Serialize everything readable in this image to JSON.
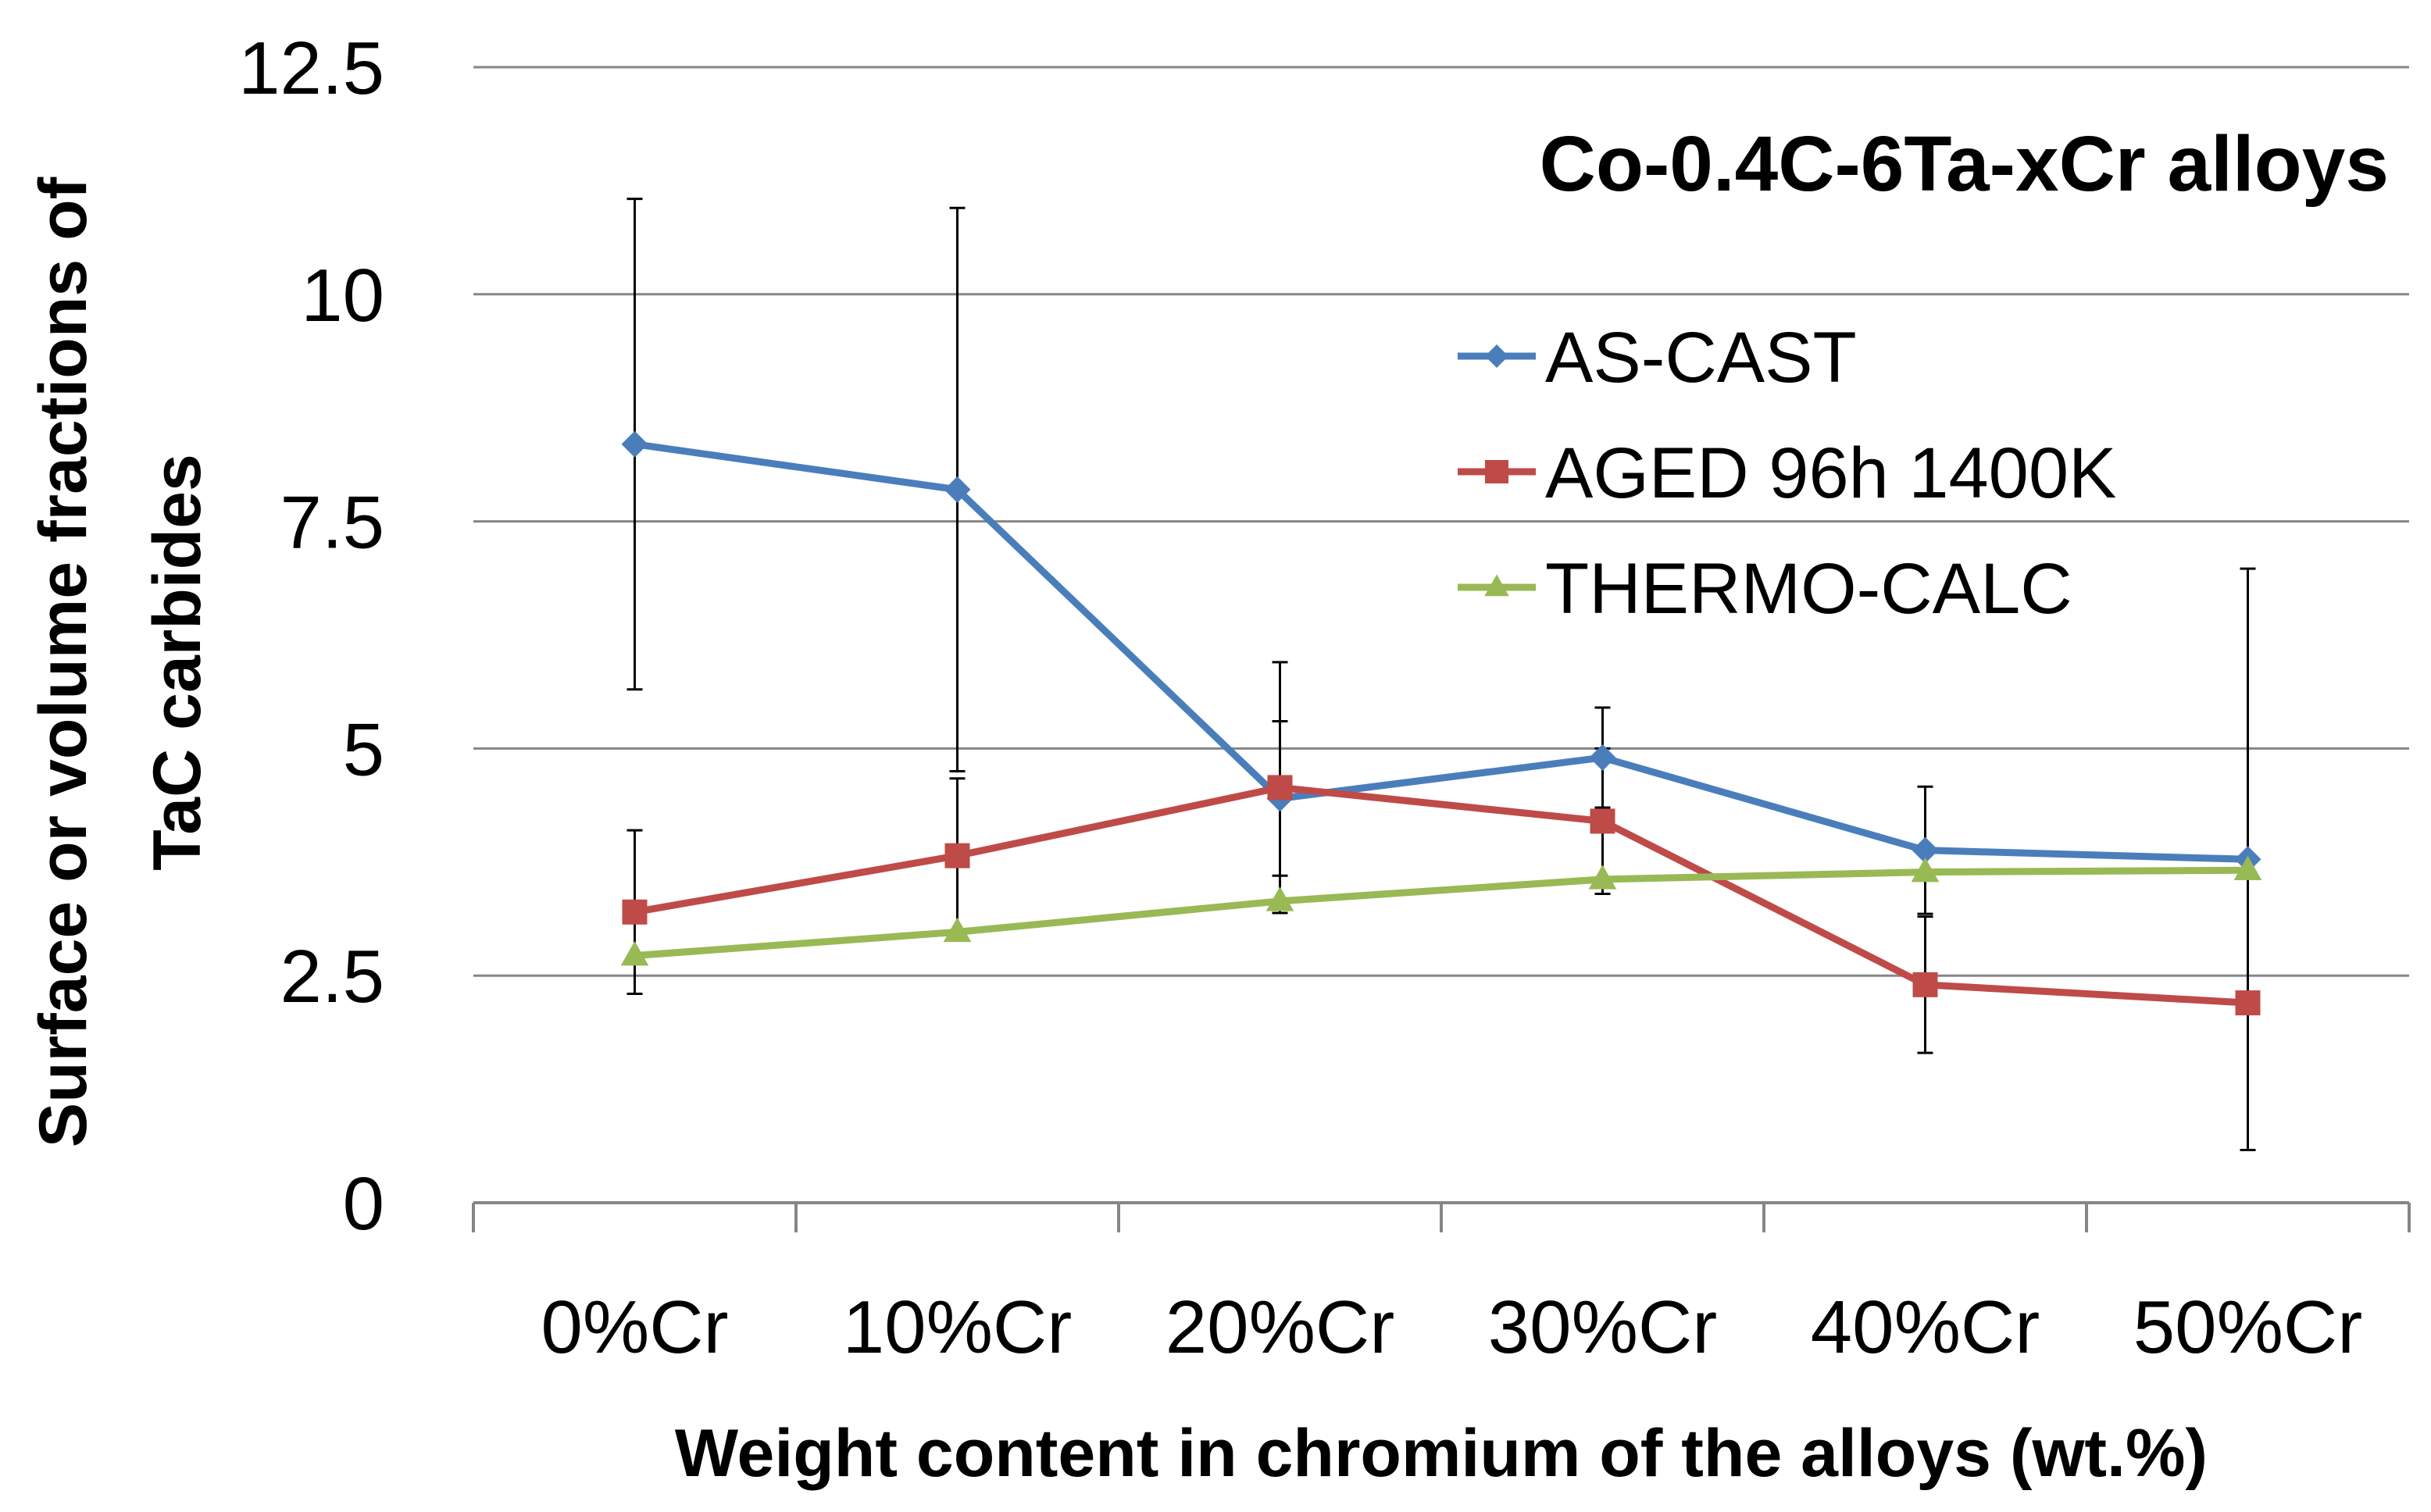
{
  "chart_data": {
    "type": "line",
    "title": "Co-0.4C-6Ta-xCr alloys",
    "xlabel": "Weight content in chromium of  the alloys (wt.%)",
    "ylabel_line1": "Surface or volume fractions of",
    "ylabel_line2": "TaC carbides",
    "categories": [
      "0%Cr",
      "10%Cr",
      "20%Cr",
      "30%Cr",
      "40%Cr",
      "50%Cr"
    ],
    "ylim": [
      0,
      12.5
    ],
    "yticks": [
      0,
      2.5,
      5,
      7.5,
      10,
      12.5
    ],
    "ytick_labels": [
      "0",
      "2.5",
      "5",
      "7.5",
      "10",
      "12.5"
    ],
    "grid": "horizontal",
    "legend_position": "top-right",
    "series": [
      {
        "name": "AS-CAST",
        "color": "#4a7ebb",
        "marker": "diamond",
        "values": [
          8.35,
          7.85,
          4.45,
          4.9,
          3.88,
          3.78
        ],
        "error": [
          2.7,
          3.1,
          0.85,
          0.55,
          0.7,
          3.2
        ]
      },
      {
        "name": "AGED 96h 1400K",
        "color": "#be4b48",
        "marker": "square",
        "values": [
          3.2,
          3.82,
          4.57,
          4.2,
          2.4,
          2.2
        ],
        "error": [
          0.9,
          0.85,
          1.38,
          0.8,
          0.75,
          1.62
        ]
      },
      {
        "name": "THERMO-CALC",
        "color": "#98b954",
        "marker": "triangle",
        "values": [
          2.72,
          2.98,
          3.32,
          3.56,
          3.64,
          3.66
        ],
        "error": [
          0,
          0,
          0,
          0,
          0,
          0
        ]
      }
    ]
  }
}
